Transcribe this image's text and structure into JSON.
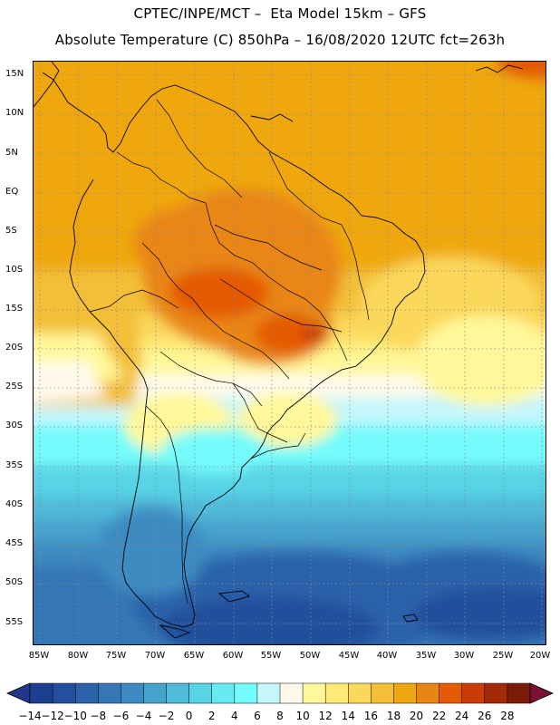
{
  "header": {
    "title_line1": "CPTEC/INPE/MCT –  Eta Model 15km – GFS",
    "title_line2": "Absolute Temperature (C) 850hPa – 16/08/2020 12UTC fct=263h"
  },
  "axes": {
    "lat_labels": [
      "15N",
      "10N",
      "5N",
      "EQ",
      "5S",
      "10S",
      "15S",
      "20S",
      "25S",
      "30S",
      "35S",
      "40S",
      "45S",
      "50S",
      "55S"
    ],
    "lon_labels": [
      "85W",
      "80W",
      "75W",
      "70W",
      "65W",
      "60W",
      "55W",
      "50W",
      "45W",
      "40W",
      "35W",
      "30W",
      "25W",
      "20W"
    ]
  },
  "colorbar": {
    "labels": [
      "-14",
      "-12",
      "-10",
      "-8",
      "-6",
      "-4",
      "-2",
      "0",
      "2",
      "4",
      "6",
      "8",
      "10",
      "12",
      "14",
      "16",
      "18",
      "20",
      "22",
      "24",
      "26",
      "28"
    ],
    "colors": [
      "#1d3f8f",
      "#244f9c",
      "#2c62aa",
      "#3577b6",
      "#3d8bc1",
      "#46a3cc",
      "#4fbbd9",
      "#58d4e6",
      "#66e9f0",
      "#74fbfb",
      "#c6f6fb",
      "#fffaeb",
      "#fff89a",
      "#ffea78",
      "#fbd75a",
      "#f3bf37",
      "#efa70f",
      "#e98613",
      "#e55a06",
      "#c93c07",
      "#a32a07",
      "#7a1c07"
    ],
    "under_color": "#22368a",
    "over_color": "#7a1033"
  }
}
